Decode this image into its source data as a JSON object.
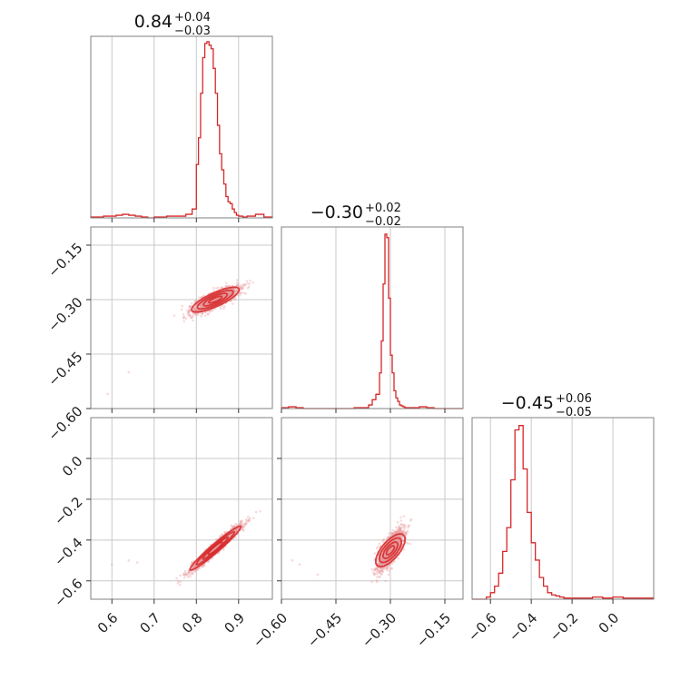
{
  "chart_data": {
    "type": "scatter",
    "subtype": "corner-plot",
    "color": "#d62728",
    "parameters": 3,
    "panels": {
      "diag_0": {
        "title": {
          "value": "0.84",
          "plus": "+0.04",
          "minus": "−0.03"
        },
        "xlim": [
          0.55,
          0.98
        ],
        "bins_x": [
          0.55,
          0.565,
          0.58,
          0.595,
          0.61,
          0.625,
          0.64,
          0.655,
          0.67,
          0.685,
          0.7,
          0.715,
          0.73,
          0.745,
          0.76,
          0.775,
          0.79,
          0.8,
          0.805,
          0.81,
          0.815,
          0.82,
          0.825,
          0.83,
          0.835,
          0.84,
          0.845,
          0.85,
          0.855,
          0.86,
          0.865,
          0.87,
          0.875,
          0.88,
          0.885,
          0.89,
          0.895,
          0.9,
          0.91,
          0.92,
          0.94,
          0.96,
          0.98
        ],
        "counts": [
          0.5,
          0.5,
          1,
          1,
          1.5,
          2,
          1.5,
          1,
          0.5,
          0,
          0.5,
          0.5,
          1,
          1,
          1,
          2,
          5,
          30,
          45,
          70,
          90,
          98,
          99,
          97,
          95,
          84,
          70,
          52,
          36,
          27,
          19,
          12,
          9,
          8,
          5,
          3,
          1.5,
          1,
          0.5,
          1,
          2,
          0.5
        ],
        "ymax": 100,
        "ticks": [
          0.6,
          0.7,
          0.8,
          0.9
        ]
      },
      "diag_1": {
        "title": {
          "value": "−0.30",
          "plus": "+0.02",
          "minus": "−0.02"
        },
        "xlim": [
          -0.6,
          -0.1
        ],
        "bins_x": [
          -0.6,
          -0.58,
          -0.56,
          -0.54,
          -0.52,
          -0.5,
          -0.48,
          -0.46,
          -0.44,
          -0.42,
          -0.4,
          -0.38,
          -0.36,
          -0.35,
          -0.34,
          -0.33,
          -0.325,
          -0.32,
          -0.315,
          -0.31,
          -0.305,
          -0.3,
          -0.295,
          -0.29,
          -0.285,
          -0.28,
          -0.275,
          -0.27,
          -0.265,
          -0.26,
          -0.25,
          -0.24,
          -0.22,
          -0.2,
          -0.18,
          -0.16,
          -0.14,
          -0.12,
          -0.1
        ],
        "counts": [
          0.5,
          1,
          0.5,
          0,
          0,
          0,
          0,
          0,
          0,
          0,
          0.5,
          0.5,
          2,
          5,
          8,
          20,
          38,
          70,
          98,
          96,
          62,
          30,
          20,
          10,
          6,
          4,
          2,
          1.5,
          1,
          0.5,
          0.5,
          0.5,
          1,
          0.5,
          0,
          0,
          0,
          0
        ],
        "ymax": 100,
        "ticks": [
          -0.6,
          -0.45,
          -0.3,
          -0.15
        ]
      },
      "diag_2": {
        "title": {
          "value": "−0.45",
          "plus": "+0.06",
          "minus": "−0.05"
        },
        "xlim": [
          -0.69,
          0.2
        ],
        "bins_x": [
          -0.69,
          -0.62,
          -0.6,
          -0.58,
          -0.56,
          -0.54,
          -0.52,
          -0.5,
          -0.48,
          -0.46,
          -0.44,
          -0.42,
          -0.4,
          -0.38,
          -0.36,
          -0.34,
          -0.32,
          -0.3,
          -0.28,
          -0.26,
          -0.24,
          -0.22,
          -0.2,
          -0.1,
          -0.05,
          0.0,
          0.05,
          0.2
        ],
        "counts": [
          0,
          1,
          3,
          6,
          12,
          22,
          33,
          55,
          78,
          80,
          60,
          40,
          26,
          18,
          10,
          6,
          3,
          2,
          1.5,
          1,
          0.5,
          0.5,
          0.5,
          1,
          0.5,
          1,
          0.5
        ],
        "ymax": 82,
        "ticks": [
          -0.6,
          -0.4,
          -0.2,
          0.0
        ]
      },
      "scatter_1_0": {
        "xlim": [
          0.55,
          0.98
        ],
        "ylim": [
          -0.6,
          -0.1
        ],
        "yticks": [
          -0.15,
          -0.3,
          -0.45,
          -0.6
        ],
        "density_center": [
          0.84,
          -0.3
        ],
        "note_outliers": [
          [
            0.59,
            -0.56
          ],
          [
            0.64,
            -0.5
          ]
        ]
      },
      "scatter_2_0": {
        "xlim": [
          0.55,
          0.98
        ],
        "ylim": [
          -0.69,
          0.2
        ],
        "yticks": [
          0.0,
          -0.2,
          -0.4,
          -0.6
        ],
        "xticks": [
          0.6,
          0.7,
          0.8,
          0.9
        ],
        "density_center": [
          0.84,
          -0.45
        ]
      },
      "scatter_2_1": {
        "xlim": [
          -0.6,
          -0.1
        ],
        "ylim": [
          -0.69,
          0.2
        ],
        "xticks": [
          -0.6,
          -0.45,
          -0.3,
          -0.15
        ],
        "density_center": [
          -0.3,
          -0.45
        ]
      }
    },
    "tick_labels": {
      "p0": [
        "0.6",
        "0.7",
        "0.8",
        "0.9"
      ],
      "p1": [
        "−0.60",
        "−0.45",
        "−0.30",
        "−0.15"
      ],
      "p1_y": [
        "−0.15",
        "−0.30",
        "−0.45",
        "−0.60"
      ],
      "p2": [
        "−0.6",
        "−0.4",
        "−0.2",
        "0.0"
      ],
      "p2_y": [
        "0.0",
        "−0.2",
        "−0.4",
        "−0.6"
      ]
    }
  }
}
